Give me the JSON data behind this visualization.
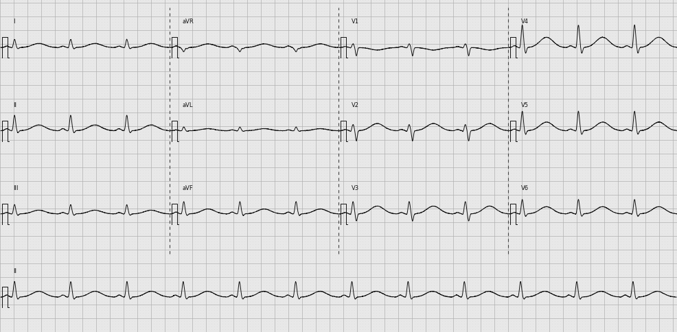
{
  "bg_color": "#e8e8e8",
  "grid_dot_color": "#c0c0c0",
  "grid_major_color": "#b0b0b0",
  "line_color": "#111111",
  "line_width": 0.7,
  "figsize": [
    9.86,
    4.85
  ],
  "dpi": 100,
  "heart_rate": 72,
  "fs": 500,
  "lead_labels_row0": [
    "I",
    "aVR",
    "V1",
    "V4"
  ],
  "lead_labels_row1": [
    "II",
    "aVL",
    "V2",
    "V5"
  ],
  "lead_labels_row2": [
    "III",
    "aVF",
    "V3",
    "V6"
  ],
  "bottom_label": "II",
  "lead_configs": {
    "I": {
      "r_amp": 0.4,
      "p_amp": 0.07,
      "q_amp": -0.04,
      "s_amp": -0.06,
      "t_amp": 0.2,
      "qt_factor": 1.5,
      "invert": false
    },
    "II": {
      "r_amp": 0.75,
      "p_amp": 0.1,
      "q_amp": -0.05,
      "s_amp": -0.1,
      "t_amp": 0.28,
      "qt_factor": 1.5,
      "invert": false
    },
    "III": {
      "r_amp": 0.45,
      "p_amp": 0.07,
      "q_amp": -0.04,
      "s_amp": -0.07,
      "t_amp": 0.18,
      "qt_factor": 1.5,
      "invert": false
    },
    "aVR": {
      "r_amp": 0.2,
      "p_amp": -0.08,
      "q_amp": 0.04,
      "s_amp": 0.05,
      "t_amp": -0.18,
      "qt_factor": 1.5,
      "invert": true
    },
    "aVL": {
      "r_amp": 0.18,
      "p_amp": 0.04,
      "q_amp": -0.02,
      "s_amp": -0.03,
      "t_amp": 0.1,
      "qt_factor": 1.5,
      "invert": false
    },
    "aVF": {
      "r_amp": 0.6,
      "p_amp": 0.09,
      "q_amp": -0.04,
      "s_amp": -0.08,
      "t_amp": 0.24,
      "qt_factor": 1.5,
      "invert": false
    },
    "V1": {
      "r_amp": 0.18,
      "p_amp": 0.05,
      "q_amp": -0.03,
      "s_amp": -0.4,
      "t_amp": -0.12,
      "qt_factor": 1.5,
      "invert": false
    },
    "V2": {
      "r_amp": 0.3,
      "p_amp": 0.06,
      "q_amp": -0.06,
      "s_amp": -0.5,
      "t_amp": 0.35,
      "qt_factor": 1.5,
      "invert": false
    },
    "V3": {
      "r_amp": 0.6,
      "p_amp": 0.07,
      "q_amp": -0.08,
      "s_amp": -0.35,
      "t_amp": 0.38,
      "qt_factor": 1.5,
      "invert": false
    },
    "V4": {
      "r_amp": 1.1,
      "p_amp": 0.09,
      "q_amp": -0.1,
      "s_amp": -0.28,
      "t_amp": 0.5,
      "qt_factor": 1.5,
      "invert": false
    },
    "V5": {
      "r_amp": 0.95,
      "p_amp": 0.08,
      "q_amp": -0.08,
      "s_amp": -0.18,
      "t_amp": 0.42,
      "qt_factor": 1.5,
      "invert": false
    },
    "V6": {
      "r_amp": 0.7,
      "p_amp": 0.07,
      "q_amp": -0.06,
      "s_amp": -0.12,
      "t_amp": 0.35,
      "qt_factor": 1.5,
      "invert": false
    }
  }
}
